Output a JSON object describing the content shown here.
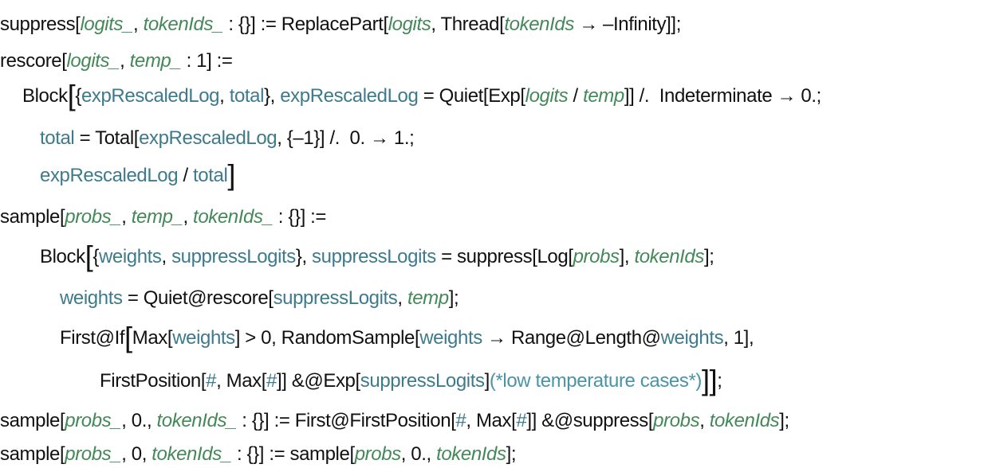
{
  "colors": {
    "keyword": "#111111",
    "pattern": "#438958",
    "variable": "#3d7a8c",
    "comment": "#4b93a8"
  },
  "lines": [
    [
      [
        "k",
        "suppress["
      ],
      [
        "p",
        "logits_"
      ],
      [
        "k",
        ", "
      ],
      [
        "p",
        "tokenIds_"
      ],
      [
        "k",
        " : {}] := ReplacePart["
      ],
      [
        "p",
        "logits"
      ],
      [
        "k",
        ", Thread["
      ],
      [
        "p",
        "tokenIds"
      ],
      [
        "k",
        " → –Infinity]];"
      ]
    ],
    [
      [
        "k",
        "rescore["
      ],
      [
        "p",
        "logits_"
      ],
      [
        "k",
        ", "
      ],
      [
        "p",
        "temp_"
      ],
      [
        "k",
        " : 1] :="
      ]
    ],
    [
      [
        "k",
        "Block"
      ],
      [
        "b",
        "["
      ],
      [
        "k",
        "{"
      ],
      [
        "v",
        "expRescaledLog"
      ],
      [
        "k",
        ", "
      ],
      [
        "v",
        "total"
      ],
      [
        "k",
        "}, "
      ],
      [
        "v",
        "expRescaledLog"
      ],
      [
        "k",
        " = Quiet[Exp["
      ],
      [
        "p",
        "logits"
      ],
      [
        "k",
        " / "
      ],
      [
        "p",
        "temp"
      ],
      [
        "k",
        "]] /.  Indeterminate → 0.;"
      ]
    ],
    [
      [
        "v",
        "total"
      ],
      [
        "k",
        " = Total["
      ],
      [
        "v",
        "expRescaledLog"
      ],
      [
        "k",
        ", {–1}] /.  0. → 1.;"
      ]
    ],
    [
      [
        "v",
        "expRescaledLog"
      ],
      [
        "k",
        " / "
      ],
      [
        "v",
        "total"
      ],
      [
        "b",
        "]"
      ]
    ],
    [
      [
        "k",
        "sample["
      ],
      [
        "p",
        "probs_"
      ],
      [
        "k",
        ", "
      ],
      [
        "p",
        "temp_"
      ],
      [
        "k",
        ", "
      ],
      [
        "p",
        "tokenIds_"
      ],
      [
        "k",
        " : {}] :="
      ]
    ],
    [
      [
        "k",
        "Block"
      ],
      [
        "b",
        "["
      ],
      [
        "k",
        "{"
      ],
      [
        "v",
        "weights"
      ],
      [
        "k",
        ", "
      ],
      [
        "v",
        "suppressLogits"
      ],
      [
        "k",
        "}, "
      ],
      [
        "v",
        "suppressLogits"
      ],
      [
        "k",
        " = suppress[Log["
      ],
      [
        "p",
        "probs"
      ],
      [
        "k",
        "], "
      ],
      [
        "p",
        "tokenIds"
      ],
      [
        "k",
        "];"
      ]
    ],
    [
      [
        "v",
        "weights"
      ],
      [
        "k",
        " = Quiet@rescore["
      ],
      [
        "v",
        "suppressLogits"
      ],
      [
        "k",
        ", "
      ],
      [
        "p",
        "temp"
      ],
      [
        "k",
        "];"
      ]
    ],
    [
      [
        "k",
        "First@If"
      ],
      [
        "b",
        "["
      ],
      [
        "k",
        "Max["
      ],
      [
        "v",
        "weights"
      ],
      [
        "k",
        "] > 0, RandomSample["
      ],
      [
        "v",
        "weights"
      ],
      [
        "k",
        " → Range@Length@"
      ],
      [
        "v",
        "weights"
      ],
      [
        "k",
        ", 1],"
      ]
    ],
    [
      [
        "k",
        "FirstPosition["
      ],
      [
        "v",
        "#"
      ],
      [
        "k",
        ", Max["
      ],
      [
        "v",
        "#"
      ],
      [
        "k",
        "]] &@Exp["
      ],
      [
        "v",
        "suppressLogits"
      ],
      [
        "k",
        "]"
      ],
      [
        "c",
        "(*low temperature cases*)"
      ],
      [
        "b",
        "]]"
      ],
      [
        "k",
        ";"
      ]
    ],
    [
      [
        "k",
        "sample["
      ],
      [
        "p",
        "probs_"
      ],
      [
        "k",
        ", 0., "
      ],
      [
        "p",
        "tokenIds_"
      ],
      [
        "k",
        " : {}] := First@FirstPosition["
      ],
      [
        "v",
        "#"
      ],
      [
        "k",
        ", Max["
      ],
      [
        "v",
        "#"
      ],
      [
        "k",
        "]] &@suppress["
      ],
      [
        "p",
        "probs"
      ],
      [
        "k",
        ", "
      ],
      [
        "p",
        "tokenIds"
      ],
      [
        "k",
        "];"
      ]
    ],
    [
      [
        "k",
        "sample["
      ],
      [
        "p",
        "probs_"
      ],
      [
        "k",
        ", 0, "
      ],
      [
        "p",
        "tokenIds_"
      ],
      [
        "k",
        " : {}] := sample["
      ],
      [
        "p",
        "probs"
      ],
      [
        "k",
        ", 0., "
      ],
      [
        "p",
        "tokenIds"
      ],
      [
        "k",
        "];"
      ]
    ]
  ]
}
